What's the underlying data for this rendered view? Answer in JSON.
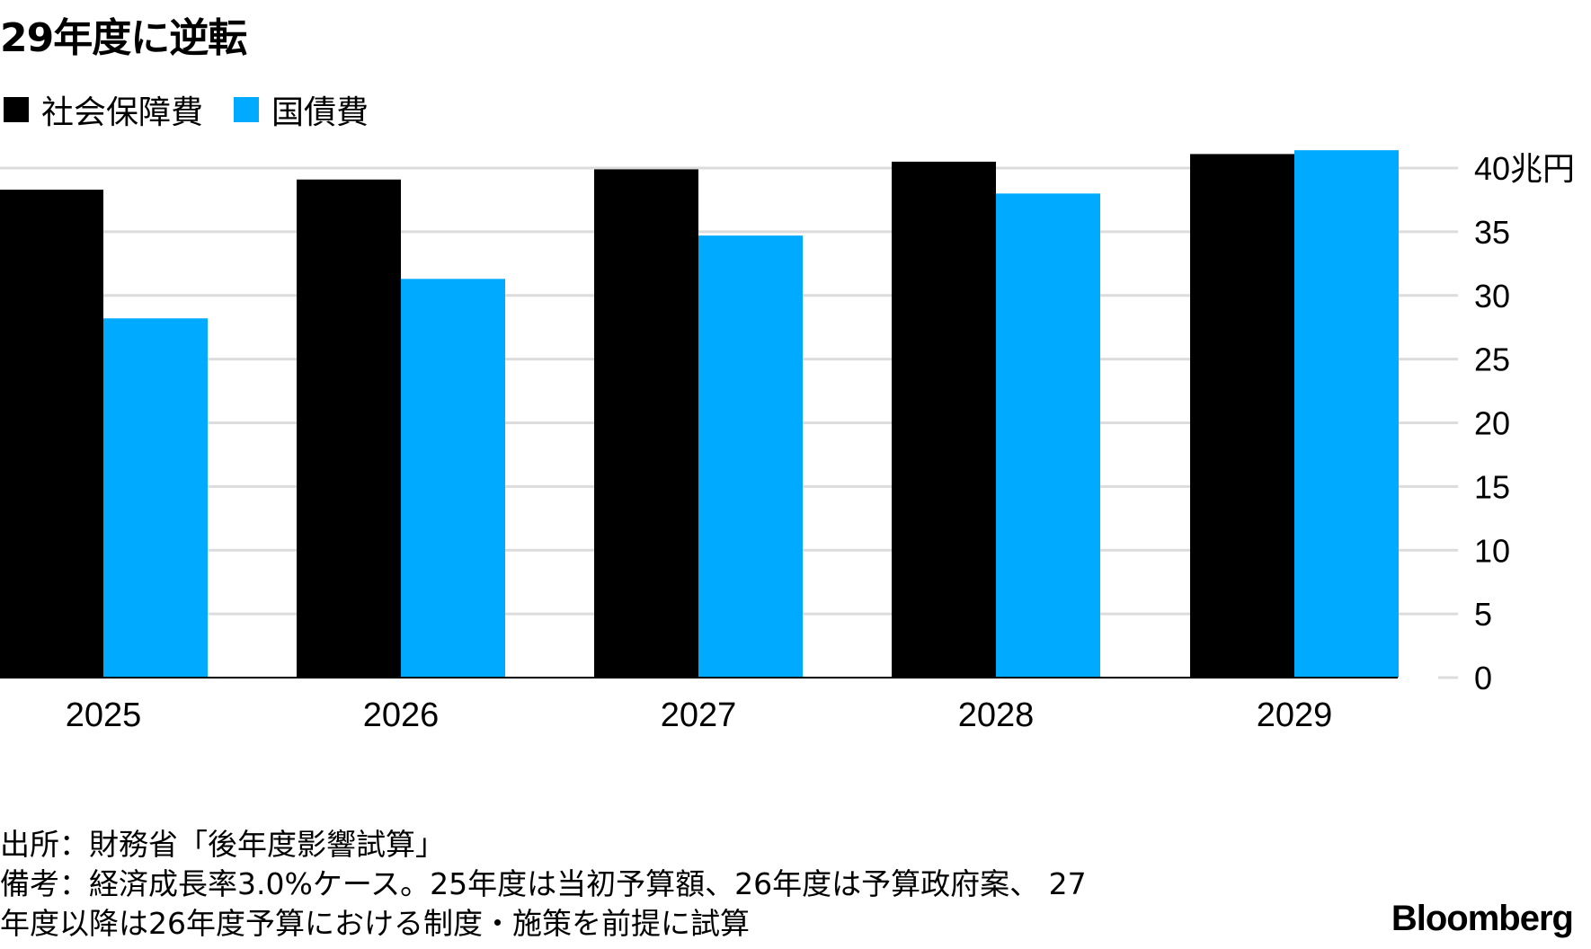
{
  "title": "29年度に逆転",
  "legend": [
    {
      "label": "社会保障費",
      "color": "#000000"
    },
    {
      "label": "国債費",
      "color": "#00aaff"
    }
  ],
  "chart_data": {
    "type": "bar",
    "categories": [
      "2025",
      "2026",
      "2027",
      "2028",
      "2029"
    ],
    "series": [
      {
        "name": "社会保障費",
        "color": "#000000",
        "values": [
          38.3,
          39.1,
          39.9,
          40.5,
          41.1
        ]
      },
      {
        "name": "国債費",
        "color": "#00aaff",
        "values": [
          28.2,
          31.3,
          34.7,
          38.0,
          41.4
        ]
      }
    ],
    "yticks": [
      "0",
      "5",
      "10",
      "15",
      "20",
      "25",
      "30",
      "35",
      "40兆円"
    ],
    "ylim": [
      0,
      40
    ],
    "grid": true,
    "legend_position": "top-left",
    "y_axis_side": "right"
  },
  "notes": [
    "出所：財務省「後年度影響試算」",
    "備考：経済成長率3.0%ケース。25年度は当初予算額、26年度は予算政府案、 27",
    "年度以降は26年度予算における制度・施策を前提に試算"
  ],
  "brand": "Bloomberg"
}
